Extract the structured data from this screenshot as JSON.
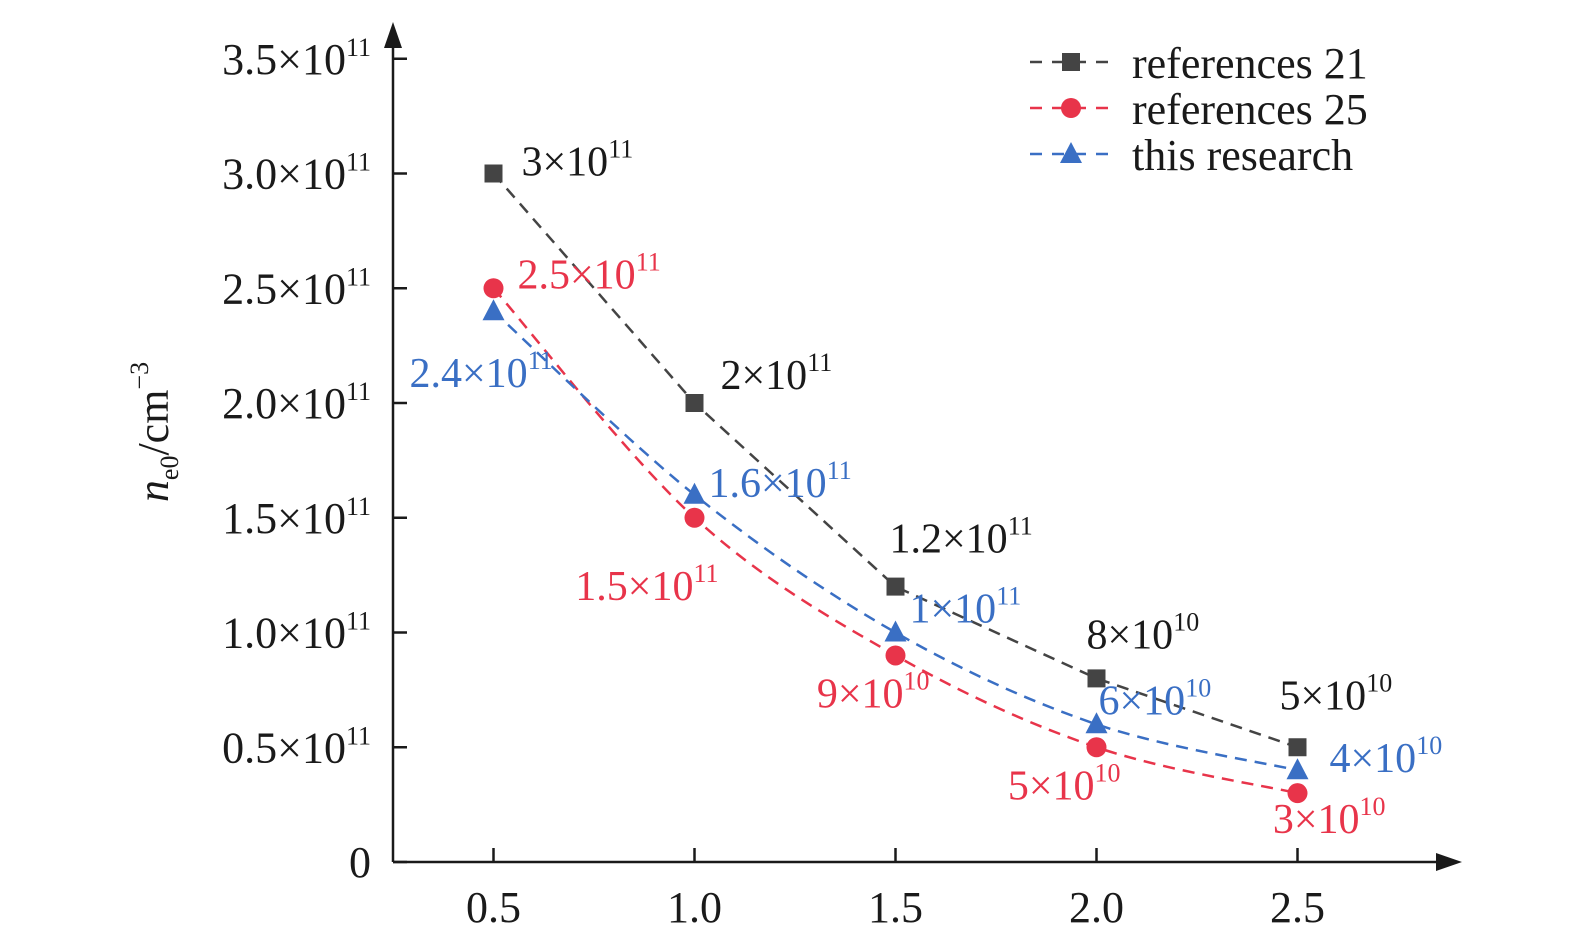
{
  "chart_data": {
    "type": "line",
    "title": "",
    "xlabel": "",
    "ylabel": {
      "symbol": "n",
      "subscript": "e0",
      "unit": "/cm",
      "unit_exponent": "−3"
    },
    "x": [
      0.5,
      1.0,
      1.5,
      2.0,
      2.5
    ],
    "x_tick_labels": [
      "0.5",
      "1.0",
      "1.5",
      "2.0",
      "2.5"
    ],
    "xlim": [
      0.25,
      2.9
    ],
    "ylim": [
      0,
      350000000000.0
    ],
    "y_ticks": [
      {
        "value": 0,
        "mantissa": "0",
        "exponent": ""
      },
      {
        "value": 50000000000.0,
        "mantissa": "0.5×10",
        "exponent": "11"
      },
      {
        "value": 100000000000.0,
        "mantissa": "1.0×10",
        "exponent": "11"
      },
      {
        "value": 150000000000.0,
        "mantissa": "1.5×10",
        "exponent": "11"
      },
      {
        "value": 200000000000.0,
        "mantissa": "2.0×10",
        "exponent": "11"
      },
      {
        "value": 250000000000.0,
        "mantissa": "2.5×10",
        "exponent": "11"
      },
      {
        "value": 300000000000.0,
        "mantissa": "3.0×10",
        "exponent": "11"
      },
      {
        "value": 350000000000.0,
        "mantissa": "3.5×10",
        "exponent": "11"
      }
    ],
    "grid": false,
    "legend_position": "top-right",
    "series": [
      {
        "name": "references 21",
        "color": "#444444",
        "marker": "square",
        "values": [
          300000000000.0,
          200000000000.0,
          120000000000.0,
          80000000000.0,
          50000000000.0
        ],
        "labels": [
          {
            "mantissa": "3×10",
            "exponent": "11"
          },
          {
            "mantissa": "2×10",
            "exponent": "11"
          },
          {
            "mantissa": "1.2×10",
            "exponent": "11"
          },
          {
            "mantissa": "8×10",
            "exponent": "10"
          },
          {
            "mantissa": "5×10",
            "exponent": "10"
          }
        ]
      },
      {
        "name": "references 25",
        "color": "#e8344a",
        "marker": "circle",
        "values": [
          250000000000.0,
          150000000000.0,
          90000000000.0,
          50000000000.0,
          30000000000.0
        ],
        "labels": [
          {
            "mantissa": "2.5×10",
            "exponent": "11"
          },
          {
            "mantissa": "1.5×10",
            "exponent": "11"
          },
          {
            "mantissa": "9×10",
            "exponent": "10"
          },
          {
            "mantissa": "5×10",
            "exponent": "10"
          },
          {
            "mantissa": "3×10",
            "exponent": "10"
          }
        ]
      },
      {
        "name": "this research",
        "color": "#3a6fc4",
        "marker": "triangle",
        "values": [
          240000000000.0,
          160000000000.0,
          100000000000.0,
          60000000000.0,
          40000000000.0
        ],
        "labels": [
          {
            "mantissa": "2.4×10",
            "exponent": "11"
          },
          {
            "mantissa": "1.6×10",
            "exponent": "11"
          },
          {
            "mantissa": "1×10",
            "exponent": "11"
          },
          {
            "mantissa": "6×10",
            "exponent": "10"
          },
          {
            "mantissa": "4×10",
            "exponent": "10"
          }
        ]
      }
    ]
  }
}
